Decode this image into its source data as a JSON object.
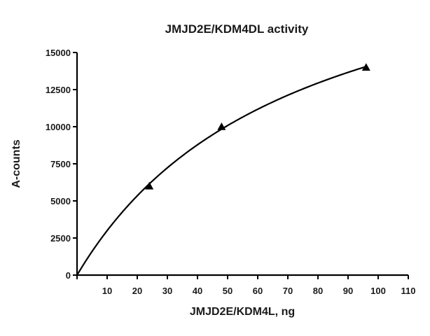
{
  "chart_data": {
    "type": "scatter",
    "title": "JMJD2E/KDM4DL activity",
    "xlabel": "JMJD2E/KDM4L, ng",
    "ylabel": "A-counts",
    "xlim": [
      0,
      110
    ],
    "ylim": [
      0,
      15000
    ],
    "x_ticks": [
      0,
      10,
      20,
      30,
      40,
      50,
      60,
      70,
      80,
      90,
      100,
      110
    ],
    "x_tick_labels": [
      "10",
      "20",
      "30",
      "40",
      "50",
      "60",
      "70",
      "80",
      "90",
      "100",
      "110"
    ],
    "y_ticks": [
      0,
      2500,
      5000,
      7500,
      10000,
      12500,
      15000
    ],
    "y_tick_labels": [
      "0",
      "2500",
      "5000",
      "7500",
      "10000",
      "12500",
      "15000"
    ],
    "grid": false,
    "series": [
      {
        "marker": "triangle",
        "color": "#000000",
        "points": [
          {
            "x": 24,
            "y": 6000
          },
          {
            "x": 48,
            "y": 10000
          },
          {
            "x": 96,
            "y": 14000
          }
        ]
      }
    ],
    "fit_curve": {
      "model": "hyperbolic",
      "color": "#000000"
    }
  }
}
